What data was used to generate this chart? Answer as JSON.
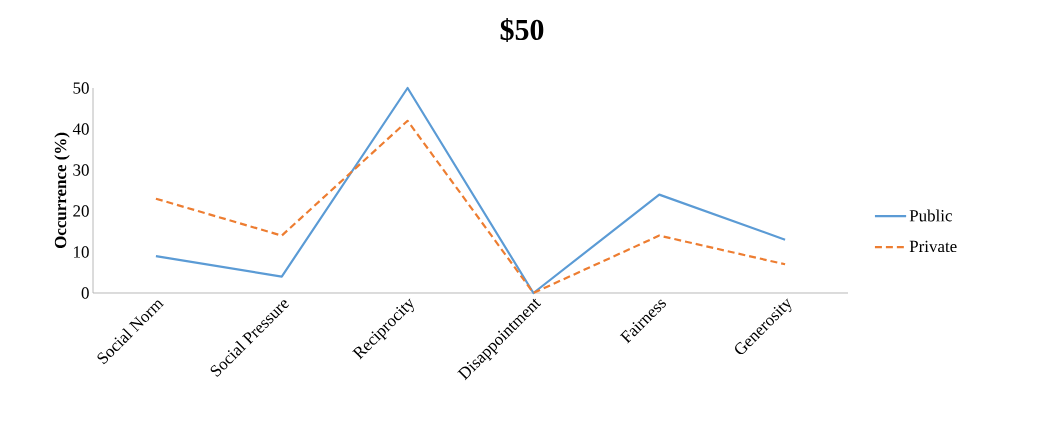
{
  "chart_data": {
    "type": "line",
    "title": "$50",
    "ylabel": "Occurrence (%)",
    "categories": [
      "Social Norm",
      "Social Pressure",
      "Reciprocity",
      "Disappointment",
      "Fairness",
      "Generosity"
    ],
    "series": [
      {
        "name": "Public",
        "color": "#5b9bd5",
        "line_style": "solid",
        "values": [
          9,
          4,
          50,
          0,
          24,
          13
        ]
      },
      {
        "name": "Private",
        "color": "#ed7d31",
        "line_style": "dashed",
        "values": [
          23,
          14,
          42,
          0,
          14,
          7
        ]
      }
    ],
    "ylim": [
      0,
      50
    ],
    "yticks": [
      0,
      10,
      20,
      30,
      40,
      50
    ],
    "legend": "right",
    "grid": false,
    "marker": "none"
  }
}
